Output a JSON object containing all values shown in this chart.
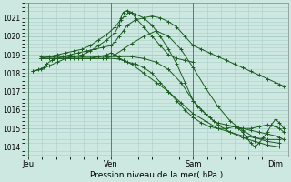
{
  "bg_color": "#cce8e0",
  "grid_color": "#aacfc8",
  "line_color": "#1a5c20",
  "marker_color": "#1a5c20",
  "xlabel": "Pression niveau de la mer( hPa )",
  "xlabels": [
    "Jeu",
    "Ven",
    "Sam",
    "Dim"
  ],
  "xtick_pos": [
    0,
    1,
    2,
    3
  ],
  "yticks": [
    1014,
    1015,
    1016,
    1017,
    1018,
    1019,
    1020,
    1021
  ],
  "ylim": [
    1013.5,
    1021.8
  ],
  "xlim": [
    -0.05,
    3.15
  ],
  "day_lines": [
    0,
    1,
    2,
    3
  ],
  "series": [
    {
      "x": [
        0.05,
        0.12,
        0.18,
        0.22,
        0.28,
        0.35,
        0.42,
        0.5,
        0.6,
        0.7,
        0.8,
        0.9,
        1.0,
        1.05,
        1.1,
        1.15,
        1.2,
        1.3,
        1.4,
        1.5,
        1.6,
        1.7,
        1.8,
        1.9,
        2.0,
        2.1,
        2.2,
        2.3,
        2.4,
        2.5,
        2.6,
        2.7,
        2.8,
        2.9,
        3.0,
        3.05,
        3.1
      ],
      "y": [
        1018.1,
        1018.2,
        1018.3,
        1018.5,
        1018.7,
        1018.8,
        1018.9,
        1019.0,
        1019.1,
        1019.2,
        1019.3,
        1019.4,
        1019.5,
        1019.7,
        1020.0,
        1020.3,
        1020.6,
        1020.9,
        1021.0,
        1021.1,
        1021.0,
        1020.8,
        1020.5,
        1020.0,
        1019.5,
        1019.3,
        1019.1,
        1018.9,
        1018.7,
        1018.5,
        1018.3,
        1018.1,
        1017.9,
        1017.7,
        1017.5,
        1017.4,
        1017.3
      ]
    },
    {
      "x": [
        0.05,
        0.15,
        0.25,
        0.35,
        0.45,
        0.55,
        0.65,
        0.75,
        0.85,
        0.95,
        1.05,
        1.1,
        1.12,
        1.15,
        1.2,
        1.25,
        1.3,
        1.4,
        1.5,
        1.6,
        1.7,
        1.8,
        1.9,
        2.0
      ],
      "y": [
        1018.1,
        1018.2,
        1018.4,
        1018.6,
        1018.8,
        1018.9,
        1019.0,
        1019.2,
        1019.5,
        1019.8,
        1020.2,
        1020.6,
        1021.0,
        1021.3,
        1021.4,
        1021.3,
        1021.0,
        1020.5,
        1020.0,
        1019.5,
        1019.0,
        1018.8,
        1018.7,
        1018.6
      ]
    },
    {
      "x": [
        0.15,
        0.25,
        0.35,
        0.45,
        0.55,
        0.65,
        0.75,
        0.85,
        0.95,
        1.0,
        1.05,
        1.1,
        1.15,
        1.2,
        1.3,
        1.4,
        1.5,
        1.6,
        1.7,
        1.8,
        1.9,
        2.0,
        2.1,
        2.2,
        2.3,
        2.4,
        2.5,
        2.6,
        2.7,
        2.8,
        2.9,
        3.0,
        3.05,
        3.1
      ],
      "y": [
        1018.8,
        1018.8,
        1018.8,
        1018.8,
        1018.8,
        1018.8,
        1018.8,
        1018.9,
        1019.0,
        1019.1,
        1019.0,
        1018.8,
        1018.7,
        1018.6,
        1018.5,
        1018.3,
        1018.0,
        1017.5,
        1017.0,
        1016.5,
        1016.0,
        1015.6,
        1015.3,
        1015.1,
        1015.0,
        1015.0,
        1015.1,
        1015.0,
        1014.9,
        1014.8,
        1014.7,
        1014.6,
        1014.5,
        1014.4
      ]
    },
    {
      "x": [
        0.15,
        0.3,
        0.45,
        0.6,
        0.75,
        0.9,
        1.05,
        1.15,
        1.25,
        1.4,
        1.55,
        1.7,
        1.85,
        2.0,
        2.15,
        2.3,
        2.45,
        2.6,
        2.75,
        2.9,
        3.05
      ],
      "y": [
        1018.8,
        1018.8,
        1018.8,
        1018.8,
        1018.8,
        1018.8,
        1018.8,
        1018.7,
        1018.5,
        1018.0,
        1017.5,
        1017.0,
        1016.4,
        1015.8,
        1015.4,
        1015.0,
        1014.8,
        1014.6,
        1014.5,
        1014.4,
        1014.4
      ]
    },
    {
      "x": [
        0.15,
        0.25,
        0.35,
        0.45,
        0.55,
        0.65,
        0.75,
        0.85,
        0.95,
        1.05,
        1.12,
        1.17,
        1.22,
        1.3,
        1.4,
        1.5,
        1.6,
        1.7,
        1.8,
        1.9,
        2.0,
        2.05,
        2.1,
        2.15,
        2.2,
        2.25,
        2.3,
        2.4,
        2.5,
        2.6,
        2.7,
        2.8,
        2.9,
        3.0,
        3.05,
        3.1
      ],
      "y": [
        1018.8,
        1018.9,
        1019.0,
        1019.1,
        1019.2,
        1019.3,
        1019.5,
        1019.8,
        1020.1,
        1020.5,
        1020.9,
        1021.1,
        1021.3,
        1021.2,
        1021.0,
        1020.6,
        1020.0,
        1019.3,
        1018.5,
        1017.5,
        1016.5,
        1016.2,
        1016.0,
        1015.8,
        1015.6,
        1015.4,
        1015.3,
        1015.2,
        1015.1,
        1015.0,
        1015.0,
        1015.1,
        1015.2,
        1015.1,
        1015.0,
        1014.8
      ]
    },
    {
      "x": [
        0.15,
        0.3,
        0.5,
        0.65,
        0.8,
        0.95,
        1.05,
        1.15,
        1.25,
        1.4,
        1.55,
        1.7,
        1.85,
        2.0,
        2.15,
        2.3,
        2.45,
        2.6,
        2.75,
        2.9,
        3.05
      ],
      "y": [
        1018.8,
        1018.8,
        1018.8,
        1018.8,
        1018.8,
        1018.8,
        1019.0,
        1019.3,
        1019.6,
        1020.0,
        1020.3,
        1020.0,
        1019.3,
        1018.3,
        1017.2,
        1016.2,
        1015.4,
        1014.9,
        1014.5,
        1014.3,
        1014.2
      ]
    },
    {
      "x": [
        0.15,
        0.3,
        0.5,
        0.65,
        0.8,
        0.95,
        1.1,
        1.25,
        1.4,
        1.55,
        1.7,
        1.85,
        2.0,
        2.15,
        2.3,
        2.45,
        2.6,
        2.75,
        2.9,
        3.05
      ],
      "y": [
        1018.9,
        1018.9,
        1018.9,
        1018.9,
        1018.9,
        1018.9,
        1018.9,
        1018.9,
        1018.8,
        1018.6,
        1018.2,
        1017.5,
        1016.5,
        1015.8,
        1015.2,
        1014.8,
        1014.5,
        1014.3,
        1014.1,
        1014.0
      ]
    },
    {
      "x": [
        2.5,
        2.55,
        2.6,
        2.65,
        2.7,
        2.75,
        2.8,
        2.85,
        2.9,
        2.95,
        3.0,
        3.05,
        3.1
      ],
      "y": [
        1015.1,
        1015.0,
        1014.8,
        1014.5,
        1014.2,
        1014.0,
        1014.2,
        1014.5,
        1014.8,
        1015.2,
        1015.5,
        1015.3,
        1015.0
      ]
    }
  ]
}
